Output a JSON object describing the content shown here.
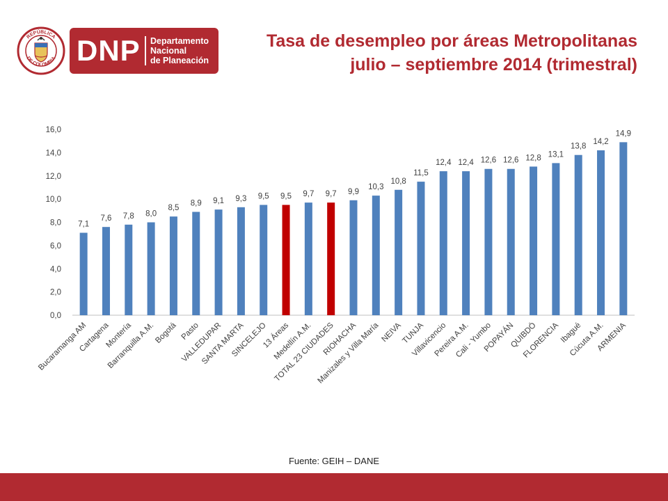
{
  "header": {
    "logo_abbr": "DNP",
    "logo_name": [
      "Departamento",
      "Nacional",
      "de Planeación"
    ],
    "seal_text_top": "REPÚBLICA",
    "seal_text_bottom": "DE COLOMBIA",
    "title_line1": "Tasa de desempleo por áreas Metropolitanas",
    "title_line2": "julio – septiembre 2014 (trimestral)"
  },
  "colors": {
    "brand": "#b12a31",
    "bar_default": "#4f81bd",
    "bar_highlight": "#c00000"
  },
  "chart_data": {
    "type": "bar",
    "title": "",
    "xlabel": "",
    "ylabel": "",
    "ylim": [
      0,
      16
    ],
    "yticks": [
      "0,0",
      "2,0",
      "4,0",
      "6,0",
      "8,0",
      "10,0",
      "12,0",
      "14,0",
      "16,0"
    ],
    "grid": false,
    "categories": [
      "Bucaramanga AM",
      "Cartagena",
      "Montería",
      "Barranquilla A.M.",
      "Bogotá",
      "Pasto",
      "VALLEDUPAR",
      "SANTA MARTA",
      "SINCELEJO",
      "13 Áreas",
      "Medellín A.M.",
      "TOTAL 23 CIUDADES",
      "RIOHACHA",
      "Manizales y Villa María",
      "NEIVA",
      "TUNJA",
      "Villavicencio",
      "Pereira A.M.",
      "Cali - Yumbo",
      "POPAYÁN",
      "QUIBDÓ",
      "FLORENCIA",
      "Ibagué",
      "Cúcuta A.M.",
      "ARMENIA"
    ],
    "values": [
      7.1,
      7.6,
      7.8,
      8.0,
      8.5,
      8.9,
      9.1,
      9.3,
      9.5,
      9.5,
      9.7,
      9.7,
      9.9,
      10.3,
      10.8,
      11.5,
      12.4,
      12.4,
      12.6,
      12.6,
      12.8,
      13.1,
      13.8,
      14.2,
      14.9
    ],
    "labels": [
      "7,1",
      "7,6",
      "7,8",
      "8,0",
      "8,5",
      "8,9",
      "9,1",
      "9,3",
      "9,5",
      "9,5",
      "9,7",
      "9,7",
      "9,9",
      "10,3",
      "10,8",
      "11,5",
      "12,4",
      "12,4",
      "12,6",
      "12,6",
      "12,8",
      "13,1",
      "13,8",
      "14,2",
      "14,9"
    ],
    "highlighted": [
      "13 Áreas",
      "TOTAL 23 CIUDADES"
    ]
  },
  "footer": {
    "source": "Fuente: GEIH – DANE"
  }
}
